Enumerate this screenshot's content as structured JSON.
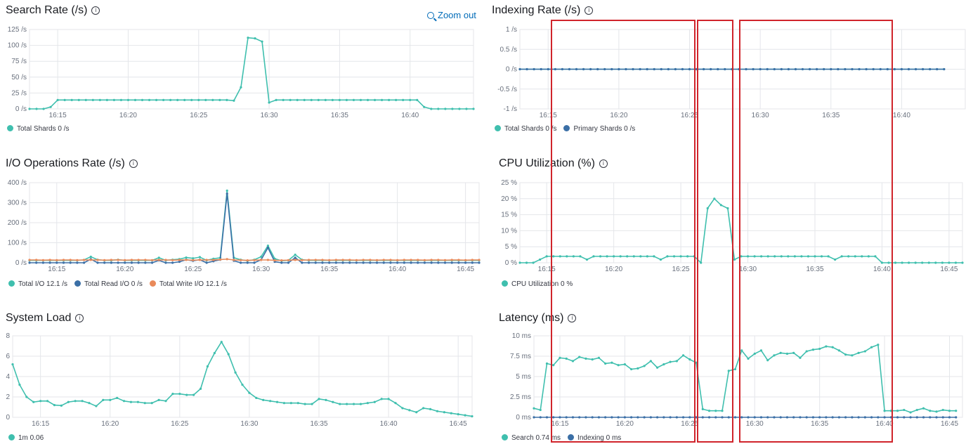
{
  "colors": {
    "teal": "#3fbfae",
    "blue": "#3b6fa6",
    "orange": "#e98a5a",
    "grid": "#e4e6ea",
    "highlight": "#d0242b"
  },
  "panels": {
    "search": {
      "title": "Search Rate (/s)",
      "zoom_label": "Zoom out",
      "legend": [
        {
          "label": "Total Shards 0 /s",
          "color": "#3fbfae"
        }
      ]
    },
    "indexing": {
      "title": "Indexing Rate (/s)",
      "legend": [
        {
          "label": "Total Shards 0 /s",
          "color": "#3fbfae"
        },
        {
          "label": "Primary Shards 0 /s",
          "color": "#3b6fa6"
        }
      ]
    },
    "io": {
      "title": "I/O Operations Rate (/s)",
      "legend": [
        {
          "label": "Total I/O 12.1 /s",
          "color": "#3fbfae"
        },
        {
          "label": "Total Read I/O 0 /s",
          "color": "#3b6fa6"
        },
        {
          "label": "Total Write I/O 12.1 /s",
          "color": "#e98a5a"
        }
      ]
    },
    "cpu": {
      "title": "CPU Utilization (%)",
      "legend": [
        {
          "label": "CPU Utilization 0 %",
          "color": "#3fbfae"
        }
      ]
    },
    "load": {
      "title": "System Load",
      "legend": [
        {
          "label": "1m 0.06",
          "color": "#3fbfae"
        }
      ]
    },
    "latency": {
      "title": "Latency (ms)",
      "legend": [
        {
          "label": "Search 0.74 ms",
          "color": "#3fbfae"
        },
        {
          "label": "Indexing 0 ms",
          "color": "#3b6fa6"
        }
      ]
    }
  },
  "chart_data": [
    {
      "id": "search",
      "type": "line",
      "ylim": [
        0,
        125
      ],
      "yticks": [
        "0 /s",
        "25 /s",
        "50 /s",
        "75 /s",
        "100 /s",
        "125 /s"
      ],
      "xticks": [
        "16:15",
        "16:20",
        "16:25",
        "16:30",
        "16:35",
        "16:40"
      ],
      "xrange": [
        13.0,
        44.5
      ],
      "xtick_start": 15,
      "series": [
        {
          "color": "#3fbfae",
          "x_start": 13.0,
          "x_step": 0.5,
          "values": [
            0,
            0,
            0,
            3,
            14,
            14,
            14,
            14,
            14,
            14,
            14,
            14,
            14,
            14,
            14,
            14,
            14,
            14,
            14,
            14,
            14,
            14,
            14,
            14,
            14,
            14,
            14,
            14,
            14,
            13,
            34,
            112,
            111,
            106,
            10,
            14,
            14,
            14,
            14,
            14,
            14,
            14,
            14,
            14,
            14,
            14,
            14,
            14,
            14,
            14,
            14,
            14,
            14,
            14,
            14,
            14,
            3,
            0,
            0,
            0,
            0,
            0,
            0,
            0
          ]
        }
      ]
    },
    {
      "id": "indexing",
      "type": "line",
      "ylim": [
        -1,
        1
      ],
      "yticks": [
        "-1 /s",
        "-0.5 /s",
        "0 /s",
        "0.5 /s",
        "1 /s"
      ],
      "xticks": [
        "16:15",
        "16:20",
        "16:25",
        "16:30",
        "16:35",
        "16:40"
      ],
      "xrange": [
        13.0,
        44.5
      ],
      "xtick_start": 15,
      "series": [
        {
          "color": "#3fbfae",
          "x_start": 13.0,
          "x_step": 0.5,
          "constant": 0,
          "count": 61
        },
        {
          "color": "#3b6fa6",
          "x_start": 13.0,
          "x_step": 0.5,
          "constant": 0,
          "count": 61
        }
      ]
    },
    {
      "id": "io",
      "type": "line",
      "ylim": [
        0,
        400
      ],
      "yticks": [
        "0 /s",
        "100 /s",
        "200 /s",
        "300 /s",
        "400 /s"
      ],
      "xticks": [
        "16:15",
        "16:20",
        "16:25",
        "16:30",
        "16:35",
        "16:40",
        "16:45"
      ],
      "xrange": [
        13.0,
        46.0
      ],
      "xtick_start": 15,
      "series": [
        {
          "name": "Total I/O",
          "color": "#3fbfae",
          "x_start": 13.0,
          "x_step": 0.5,
          "values": [
            12,
            12,
            12,
            12,
            12,
            12,
            12,
            12,
            14,
            30,
            15,
            12,
            12,
            15,
            12,
            12,
            12,
            12,
            12,
            25,
            12,
            15,
            18,
            26,
            22,
            28,
            12,
            20,
            25,
            360,
            25,
            15,
            10,
            15,
            30,
            85,
            20,
            10,
            12,
            40,
            15,
            12,
            12,
            12,
            12,
            12,
            12,
            12,
            12,
            12,
            12,
            12,
            12,
            12,
            12,
            12,
            12,
            12,
            12,
            12,
            12,
            12,
            12,
            12,
            12,
            12,
            12
          ]
        },
        {
          "name": "Total Read I/O",
          "color": "#3b6fa6",
          "x_start": 13.0,
          "x_step": 0.5,
          "values": [
            0,
            0,
            0,
            0,
            0,
            0,
            0,
            0,
            0,
            18,
            0,
            0,
            0,
            0,
            0,
            0,
            0,
            0,
            0,
            12,
            0,
            0,
            5,
            15,
            10,
            15,
            0,
            8,
            15,
            345,
            10,
            0,
            0,
            0,
            15,
            75,
            5,
            0,
            0,
            25,
            0,
            0,
            0,
            0,
            0,
            0,
            0,
            0,
            0,
            0,
            0,
            0,
            0,
            0,
            0,
            0,
            0,
            0,
            0,
            0,
            0,
            0,
            0,
            0,
            0,
            0,
            0
          ]
        },
        {
          "name": "Total Write I/O",
          "color": "#e98a5a",
          "x_start": 13.0,
          "x_step": 0.5,
          "values": [
            14,
            14,
            13,
            14,
            13,
            14,
            14,
            13,
            14,
            14,
            14,
            13,
            14,
            14,
            13,
            14,
            14,
            14,
            13,
            14,
            14,
            13,
            14,
            14,
            13,
            14,
            14,
            14,
            16,
            18,
            14,
            13,
            12,
            13,
            14,
            14,
            12,
            12,
            13,
            14,
            13,
            14,
            14,
            14,
            13,
            14,
            14,
            14,
            13,
            14,
            14,
            13,
            14,
            14,
            13,
            14,
            14,
            14,
            13,
            14,
            14,
            13,
            14,
            14,
            13,
            14,
            14
          ]
        }
      ]
    },
    {
      "id": "cpu",
      "type": "line",
      "ylim": [
        0,
        25
      ],
      "yticks": [
        "0 %",
        "5 %",
        "10 %",
        "15 %",
        "20 %",
        "25 %"
      ],
      "xticks": [
        "16:15",
        "16:20",
        "16:25",
        "16:30",
        "16:35",
        "16:40",
        "16:45"
      ],
      "xrange": [
        13.0,
        46.0
      ],
      "xtick_start": 15,
      "series": [
        {
          "color": "#3fbfae",
          "x_start": 13.0,
          "x_step": 0.5,
          "values": [
            0,
            0,
            0,
            1,
            2,
            2,
            2,
            2,
            2,
            2,
            1,
            2,
            2,
            2,
            2,
            2,
            2,
            2,
            2,
            2,
            2,
            1,
            2,
            2,
            2,
            2,
            2,
            0,
            17,
            20,
            18,
            17,
            1,
            2,
            2,
            2,
            2,
            2,
            2,
            2,
            2,
            2,
            2,
            2,
            2,
            2,
            2,
            1,
            2,
            2,
            2,
            2,
            2,
            2,
            0,
            0,
            0,
            0,
            0,
            0,
            0,
            0,
            0,
            0,
            0,
            0,
            0
          ]
        }
      ]
    },
    {
      "id": "load",
      "type": "line",
      "ylim": [
        0,
        8
      ],
      "yticks": [
        "0",
        "2",
        "4",
        "6",
        "8"
      ],
      "xticks": [
        "16:15",
        "16:20",
        "16:25",
        "16:30",
        "16:35",
        "16:40",
        "16:45"
      ],
      "xrange": [
        13.0,
        46.0
      ],
      "xtick_start": 15,
      "series": [
        {
          "color": "#3fbfae",
          "x_start": 13.0,
          "x_step": 0.5,
          "values": [
            5.2,
            3.2,
            2.0,
            1.5,
            1.6,
            1.6,
            1.2,
            1.15,
            1.5,
            1.6,
            1.6,
            1.4,
            1.1,
            1.7,
            1.7,
            1.9,
            1.6,
            1.5,
            1.5,
            1.4,
            1.4,
            1.7,
            1.6,
            2.3,
            2.3,
            2.2,
            2.2,
            2.8,
            5.0,
            6.3,
            7.4,
            6.2,
            4.4,
            3.2,
            2.4,
            1.9,
            1.7,
            1.6,
            1.5,
            1.4,
            1.4,
            1.4,
            1.3,
            1.3,
            1.8,
            1.7,
            1.5,
            1.3,
            1.3,
            1.3,
            1.3,
            1.4,
            1.5,
            1.8,
            1.8,
            1.4,
            0.9,
            0.7,
            0.5,
            0.9,
            0.8,
            0.6,
            0.5,
            0.4,
            0.3,
            0.2,
            0.1
          ]
        }
      ]
    },
    {
      "id": "latency",
      "type": "line",
      "ylim": [
        0,
        10
      ],
      "yticks": [
        "0 ms",
        "2.5 ms",
        "5 ms",
        "7.5 ms",
        "10 ms"
      ],
      "xticks": [
        "16:15",
        "16:20",
        "16:25",
        "16:30",
        "16:35",
        "16:40",
        "16:45"
      ],
      "xrange": [
        13.0,
        46.0
      ],
      "xtick_start": 15,
      "series": [
        {
          "name": "Search",
          "color": "#3fbfae",
          "x_start": 13.0,
          "x_step": 0.5,
          "values": [
            1.1,
            0.9,
            6.6,
            6.4,
            7.3,
            7.2,
            6.9,
            7.4,
            7.2,
            7.1,
            7.3,
            6.6,
            6.7,
            6.4,
            6.5,
            5.9,
            6.0,
            6.3,
            6.9,
            6.1,
            6.5,
            6.8,
            6.9,
            7.6,
            7.1,
            6.7,
            1.0,
            0.8,
            0.8,
            0.8,
            5.7,
            5.9,
            8.2,
            7.2,
            7.8,
            8.2,
            7.0,
            7.6,
            7.9,
            7.8,
            7.9,
            7.3,
            8.1,
            8.3,
            8.4,
            8.7,
            8.6,
            8.2,
            7.7,
            7.6,
            7.9,
            8.1,
            8.6,
            8.9,
            0.8,
            0.8,
            0.8,
            0.9,
            0.6,
            0.9,
            1.1,
            0.8,
            0.7,
            0.9,
            0.8,
            0.8
          ]
        },
        {
          "name": "Indexing",
          "color": "#3b6fa6",
          "x_start": 13.0,
          "x_step": 0.5,
          "constant": 0,
          "count": 66
        }
      ]
    }
  ]
}
